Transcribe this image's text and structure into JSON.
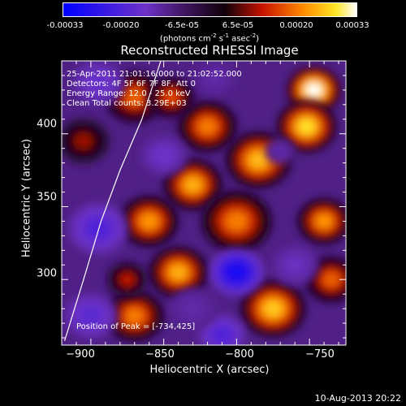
{
  "colorbar": {
    "ticks": [
      "-0.00033",
      "-0.00020",
      "-6.5e-05",
      "6.5e-05",
      "0.00020",
      "0.00033"
    ],
    "units_main": "(photons cm",
    "units_sup1": "-2",
    "units_mid": " s",
    "units_sup2": "-1",
    "units_end": " asec",
    "units_sup3": "-2",
    "units_close": ")"
  },
  "chart_data": {
    "type": "heatmap",
    "title": "Reconstructed RHESSI Image",
    "xlabel": "Heliocentric X (arcsec)",
    "ylabel": "Heliocentric Y (arcsec)",
    "xlim": [
      -920,
      -725
    ],
    "ylim": [
      255,
      450
    ],
    "xticks": [
      -900,
      -850,
      -800,
      -750
    ],
    "yticks": [
      300,
      350,
      400
    ],
    "xtick_labels": [
      "−900",
      "−850",
      "−800",
      "−750"
    ],
    "ytick_labels": [
      "300",
      "350",
      "400"
    ],
    "color_range": [
      -0.00033,
      0.00033
    ],
    "limb_curve": [
      [
        -918,
        258
      ],
      [
        -905,
        300
      ],
      [
        -893,
        340
      ],
      [
        -880,
        375
      ],
      [
        -865,
        410
      ],
      [
        -852,
        450
      ]
    ],
    "annotations": {
      "time": "25-Apr-2011 21:01:16.000 to 21:02:52.000",
      "detectors": "Detectors: 4F 5F 6F 7F 8F, Att 0",
      "energy": "Energy Range: 12.0 - 25.0 keV",
      "clean": "Clean     Total counts: 3.29E+03",
      "peak": "Position of Peak = [-734,425]"
    },
    "blobs": [
      {
        "x": -747,
        "y": 430,
        "v": 0.00033,
        "r": 9
      },
      {
        "x": -752,
        "y": 405,
        "v": 0.00028,
        "r": 10
      },
      {
        "x": -785,
        "y": 382,
        "v": 0.00025,
        "r": 11
      },
      {
        "x": -770,
        "y": 388,
        "v": -0.00012,
        "r": 5
      },
      {
        "x": -820,
        "y": 405,
        "v": 0.0002,
        "r": 10
      },
      {
        "x": -830,
        "y": 365,
        "v": 0.00024,
        "r": 10
      },
      {
        "x": -800,
        "y": 340,
        "v": 0.0002,
        "r": 12
      },
      {
        "x": -860,
        "y": 340,
        "v": 0.00022,
        "r": 10
      },
      {
        "x": -870,
        "y": 425,
        "v": 0.00018,
        "r": 10
      },
      {
        "x": -845,
        "y": 425,
        "v": 0.00016,
        "r": 8
      },
      {
        "x": -840,
        "y": 305,
        "v": 0.00024,
        "r": 10
      },
      {
        "x": -870,
        "y": 275,
        "v": 0.0002,
        "r": 10
      },
      {
        "x": -775,
        "y": 280,
        "v": 0.00026,
        "r": 11
      },
      {
        "x": -740,
        "y": 340,
        "v": 0.00022,
        "r": 9
      },
      {
        "x": -735,
        "y": 300,
        "v": 0.00018,
        "r": 9
      },
      {
        "x": -905,
        "y": 395,
        "v": 0.0001,
        "r": 9
      },
      {
        "x": -895,
        "y": 335,
        "v": -0.0002,
        "r": 10
      },
      {
        "x": -800,
        "y": 305,
        "v": -0.0003,
        "r": 9
      },
      {
        "x": -850,
        "y": 385,
        "v": -0.00015,
        "r": 8
      },
      {
        "x": -900,
        "y": 275,
        "v": -0.00018,
        "r": 9
      },
      {
        "x": -810,
        "y": 262,
        "v": -0.0002,
        "r": 8
      },
      {
        "x": -760,
        "y": 310,
        "v": -0.00014,
        "r": 8
      },
      {
        "x": -895,
        "y": 435,
        "v": -0.00016,
        "r": 9
      },
      {
        "x": -815,
        "y": 438,
        "v": -0.00012,
        "r": 7
      },
      {
        "x": -875,
        "y": 300,
        "v": 0.00012,
        "r": 7
      },
      {
        "x": -830,
        "y": 280,
        "v": -0.00012,
        "r": 8
      }
    ]
  },
  "timestamp": "10-Aug-2013 20:22"
}
